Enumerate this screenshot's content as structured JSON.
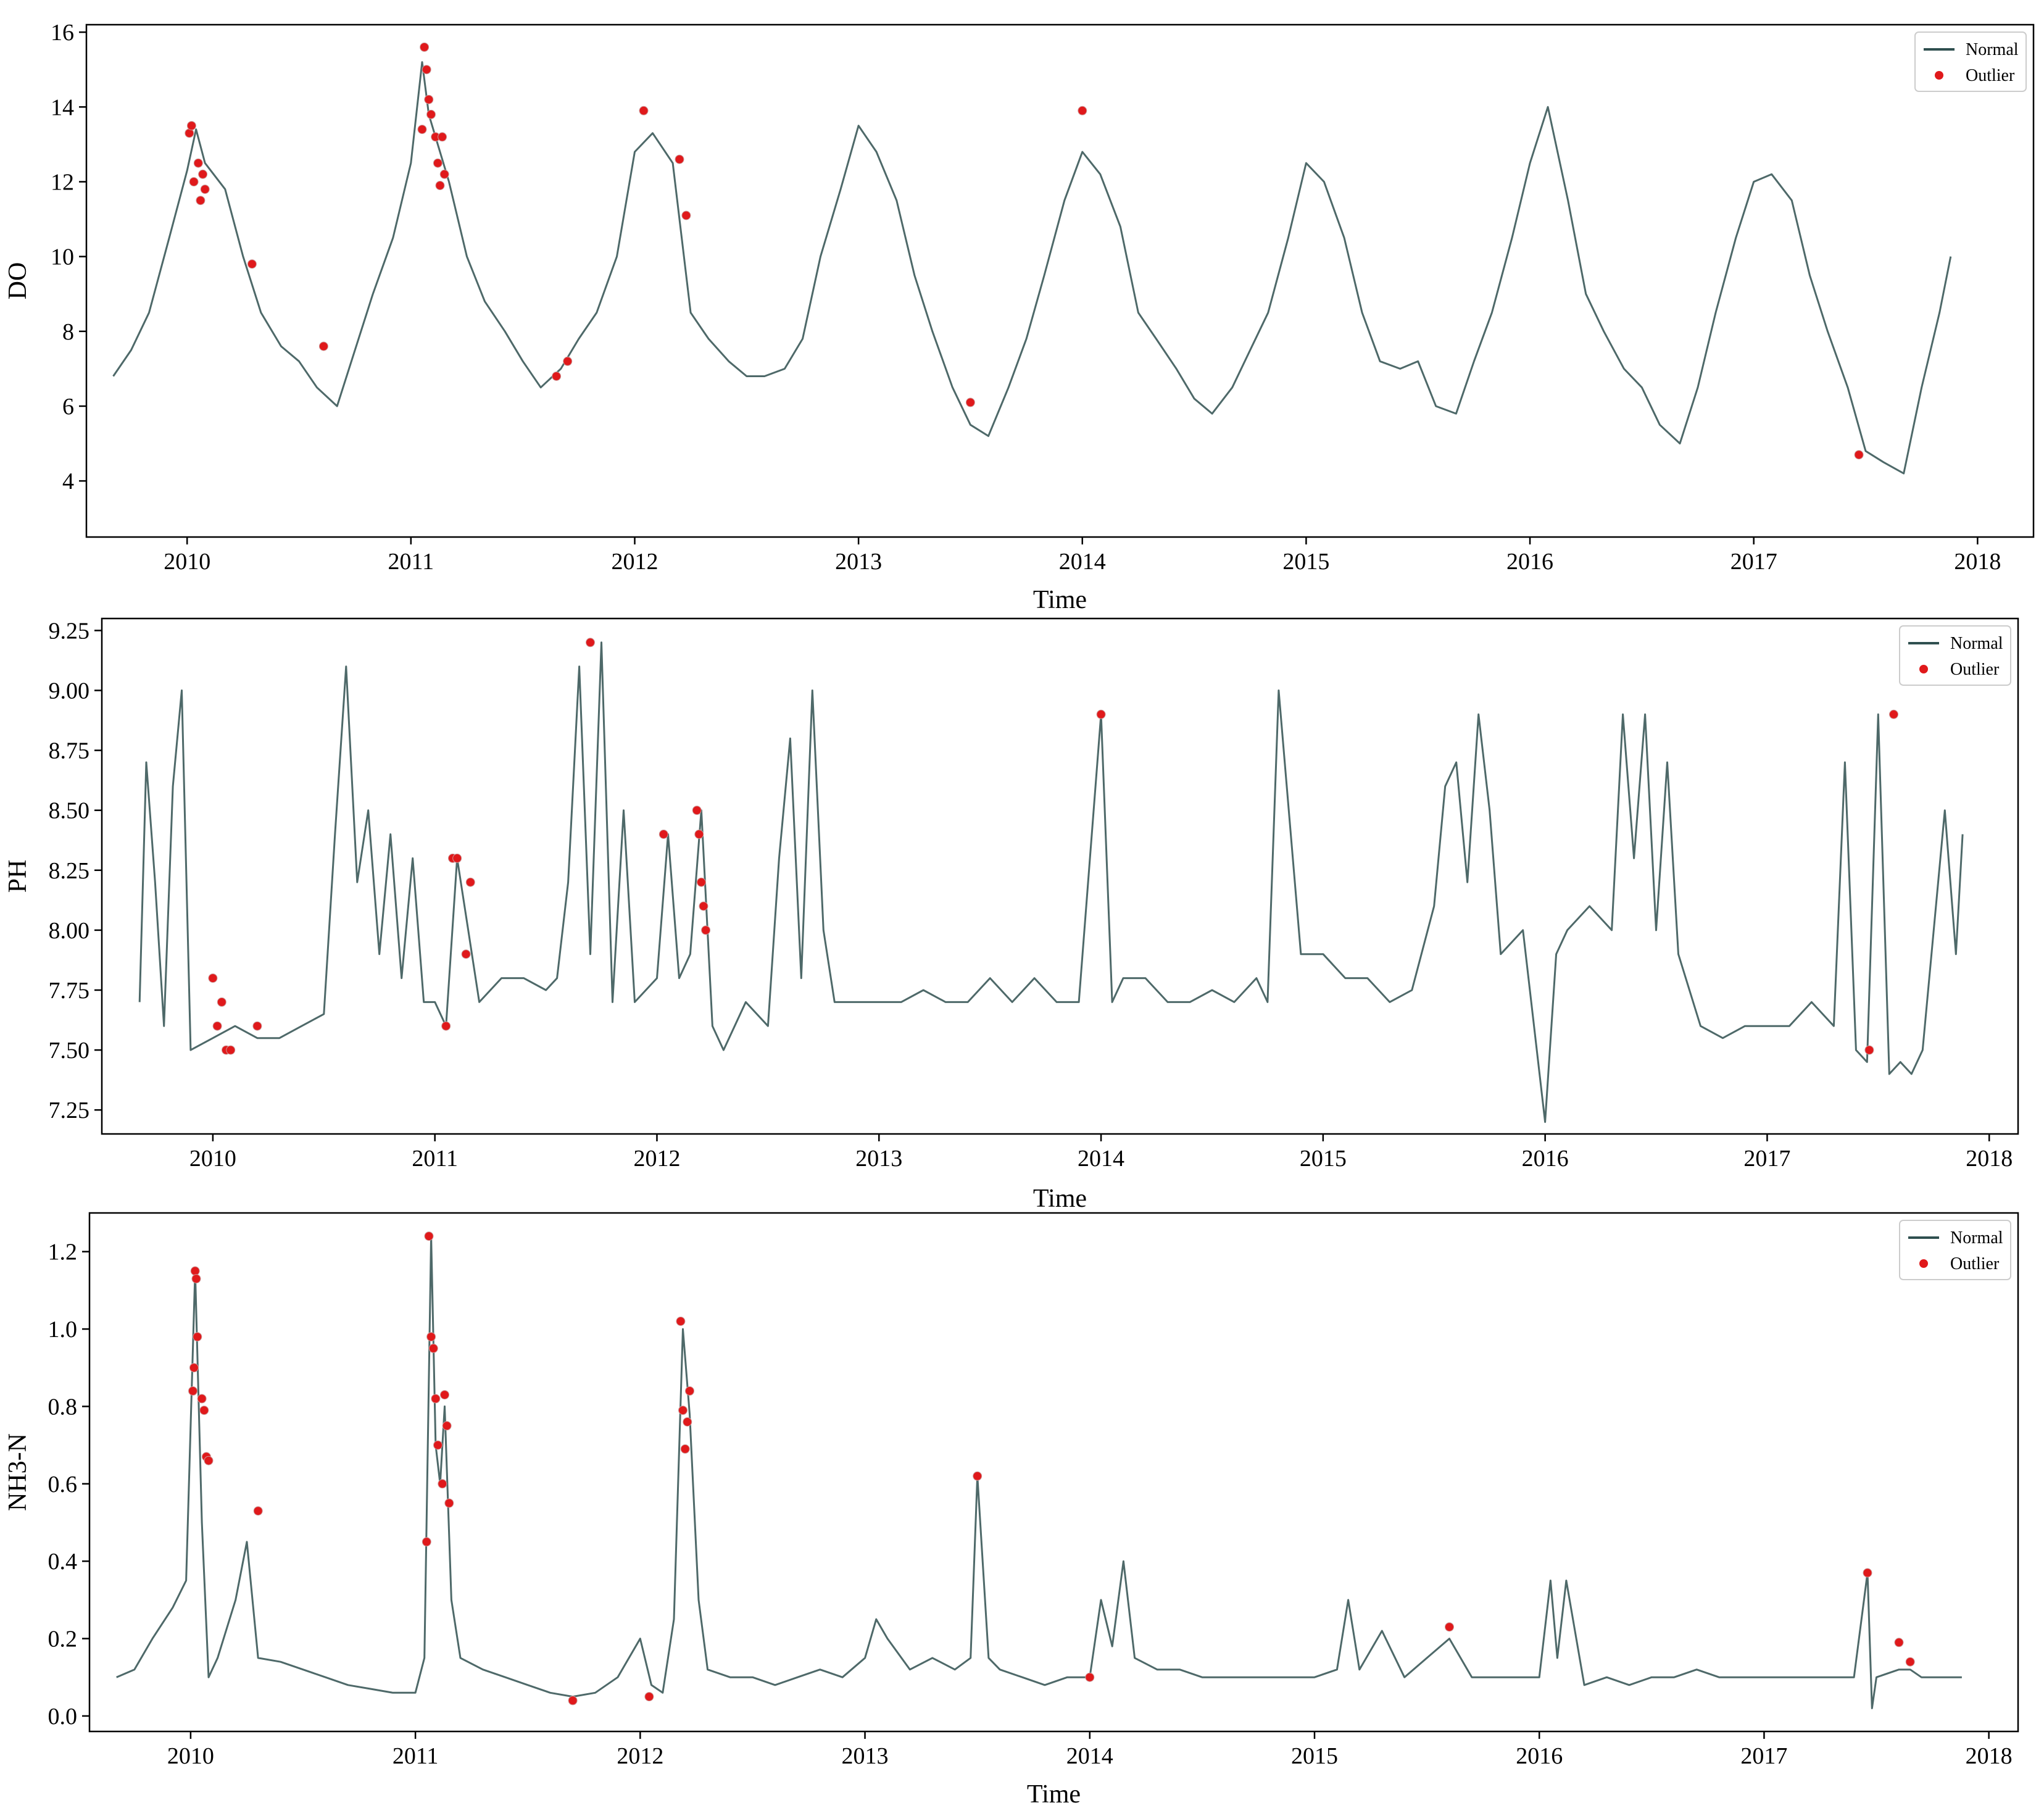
{
  "colors": {
    "normal": "#2f4f4f",
    "outlier": "#e0191b"
  },
  "chart_data": [
    {
      "type": "line",
      "xlabel": "Time",
      "ylabel": "DO",
      "xlim": [
        2009.55,
        2018.25
      ],
      "ylim": [
        2.5,
        16.2
      ],
      "x_ticks": [
        2010,
        2011,
        2012,
        2013,
        2014,
        2015,
        2016,
        2017,
        2018
      ],
      "y_ticks": [
        "4",
        "6",
        "8",
        "10",
        "12",
        "14",
        "16"
      ],
      "y_tick_values": [
        4,
        6,
        8,
        10,
        12,
        14,
        16
      ],
      "legend": {
        "position": "top-right",
        "entries": [
          "Normal",
          "Outlier"
        ]
      },
      "series": [
        {
          "name": "Normal",
          "x": [
            2009.67,
            2009.75,
            2009.83,
            2009.92,
            2010.0,
            2010.04,
            2010.08,
            2010.17,
            2010.25,
            2010.33,
            2010.42,
            2010.5,
            2010.58,
            2010.67,
            2010.75,
            2010.83,
            2010.92,
            2011.0,
            2011.05,
            2011.08,
            2011.17,
            2011.25,
            2011.33,
            2011.42,
            2011.5,
            2011.58,
            2011.67,
            2011.75,
            2011.83,
            2011.92,
            2012.0,
            2012.08,
            2012.17,
            2012.25,
            2012.33,
            2012.42,
            2012.5,
            2012.58,
            2012.67,
            2012.75,
            2012.83,
            2012.92,
            2013.0,
            2013.08,
            2013.17,
            2013.25,
            2013.33,
            2013.42,
            2013.5,
            2013.58,
            2013.67,
            2013.75,
            2013.83,
            2013.92,
            2014.0,
            2014.08,
            2014.17,
            2014.25,
            2014.33,
            2014.42,
            2014.5,
            2014.58,
            2014.67,
            2014.75,
            2014.83,
            2014.92,
            2015.0,
            2015.08,
            2015.17,
            2015.25,
            2015.33,
            2015.42,
            2015.5,
            2015.58,
            2015.67,
            2015.75,
            2015.83,
            2015.92,
            2016.0,
            2016.08,
            2016.17,
            2016.25,
            2016.33,
            2016.42,
            2016.5,
            2016.58,
            2016.67,
            2016.75,
            2016.83,
            2016.92,
            2017.0,
            2017.08,
            2017.17,
            2017.25,
            2017.33,
            2017.42,
            2017.5,
            2017.58,
            2017.67,
            2017.75,
            2017.83,
            2017.88
          ],
          "values": [
            6.8,
            7.5,
            8.5,
            10.5,
            12.3,
            13.4,
            12.5,
            11.8,
            10.0,
            8.5,
            7.6,
            7.2,
            6.5,
            6.0,
            7.5,
            9.0,
            10.5,
            12.5,
            15.2,
            13.8,
            12.0,
            10.0,
            8.8,
            8.0,
            7.2,
            6.5,
            7.0,
            7.8,
            8.5,
            10.0,
            12.8,
            13.3,
            12.5,
            8.5,
            7.8,
            7.2,
            6.8,
            6.8,
            7.0,
            7.8,
            10.0,
            11.8,
            13.5,
            12.8,
            11.5,
            9.5,
            8.0,
            6.5,
            5.5,
            5.2,
            6.5,
            7.8,
            9.5,
            11.5,
            12.8,
            12.2,
            10.8,
            8.5,
            7.8,
            7.0,
            6.2,
            5.8,
            6.5,
            7.5,
            8.5,
            10.5,
            12.5,
            12.0,
            10.5,
            8.5,
            7.2,
            7.0,
            7.2,
            6.0,
            5.8,
            7.2,
            8.5,
            10.5,
            12.5,
            14.0,
            11.5,
            9.0,
            8.0,
            7.0,
            6.5,
            5.5,
            5.0,
            6.5,
            8.5,
            10.5,
            12.0,
            12.2,
            11.5,
            9.5,
            8.0,
            6.5,
            4.8,
            4.5,
            4.2,
            6.5,
            8.5,
            10.0
          ]
        },
        {
          "name": "Outlier",
          "x": [
            2010.01,
            2010.02,
            2010.03,
            2010.05,
            2010.06,
            2010.07,
            2010.08,
            2010.29,
            2010.61,
            2011.05,
            2011.06,
            2011.07,
            2011.08,
            2011.09,
            2011.11,
            2011.12,
            2011.13,
            2011.14,
            2011.15,
            2011.65,
            2011.7,
            2012.04,
            2012.2,
            2012.23,
            2013.5,
            2014.0,
            2017.47
          ],
          "values": [
            13.3,
            13.5,
            12.0,
            12.5,
            11.5,
            12.2,
            11.8,
            9.8,
            7.6,
            13.4,
            15.6,
            15.0,
            14.2,
            13.8,
            13.2,
            12.5,
            11.9,
            13.2,
            12.2,
            6.8,
            7.2,
            13.9,
            12.6,
            11.1,
            6.1,
            13.9,
            4.7
          ]
        }
      ]
    },
    {
      "type": "line",
      "xlabel": "Time",
      "ylabel": "PH",
      "xlim": [
        2009.5,
        2018.13
      ],
      "ylim": [
        7.15,
        9.3
      ],
      "x_ticks": [
        2010,
        2011,
        2012,
        2013,
        2014,
        2015,
        2016,
        2017,
        2018
      ],
      "y_ticks": [
        "7.25",
        "7.50",
        "7.75",
        "8.00",
        "8.25",
        "8.50",
        "8.75",
        "9.00",
        "9.25"
      ],
      "y_tick_values": [
        7.25,
        7.5,
        7.75,
        8.0,
        8.25,
        8.5,
        8.75,
        9.0,
        9.25
      ],
      "legend": {
        "position": "top-right",
        "entries": [
          "Normal",
          "Outlier"
        ]
      },
      "series": [
        {
          "name": "Normal",
          "x": [
            2009.67,
            2009.7,
            2009.74,
            2009.78,
            2009.82,
            2009.86,
            2009.9,
            2010.0,
            2010.1,
            2010.2,
            2010.3,
            2010.4,
            2010.5,
            2010.55,
            2010.6,
            2010.65,
            2010.7,
            2010.75,
            2010.8,
            2010.85,
            2010.9,
            2010.95,
            2011.0,
            2011.05,
            2011.1,
            2011.15,
            2011.2,
            2011.3,
            2011.4,
            2011.5,
            2011.55,
            2011.6,
            2011.65,
            2011.7,
            2011.75,
            2011.8,
            2011.85,
            2011.9,
            2012.0,
            2012.05,
            2012.1,
            2012.15,
            2012.2,
            2012.25,
            2012.3,
            2012.4,
            2012.5,
            2012.55,
            2012.6,
            2012.65,
            2012.7,
            2012.75,
            2012.8,
            2012.9,
            2013.0,
            2013.1,
            2013.2,
            2013.3,
            2013.4,
            2013.5,
            2013.6,
            2013.7,
            2013.8,
            2013.9,
            2014.0,
            2014.05,
            2014.1,
            2014.2,
            2014.3,
            2014.4,
            2014.5,
            2014.6,
            2014.7,
            2014.75,
            2014.8,
            2014.9,
            2015.0,
            2015.1,
            2015.2,
            2015.3,
            2015.4,
            2015.5,
            2015.55,
            2015.6,
            2015.65,
            2015.7,
            2015.75,
            2015.8,
            2015.9,
            2016.0,
            2016.05,
            2016.1,
            2016.2,
            2016.3,
            2016.35,
            2016.4,
            2016.45,
            2016.5,
            2016.55,
            2016.6,
            2016.7,
            2016.8,
            2016.9,
            2017.0,
            2017.1,
            2017.2,
            2017.3,
            2017.35,
            2017.4,
            2017.45,
            2017.5,
            2017.55,
            2017.6,
            2017.65,
            2017.7,
            2017.75,
            2017.8,
            2017.85,
            2017.88
          ],
          "values": [
            7.7,
            8.7,
            8.2,
            7.6,
            8.6,
            9.0,
            7.5,
            7.55,
            7.6,
            7.55,
            7.55,
            7.6,
            7.65,
            8.4,
            9.1,
            8.2,
            8.5,
            7.9,
            8.4,
            7.8,
            8.3,
            7.7,
            7.7,
            7.6,
            8.3,
            8.0,
            7.7,
            7.8,
            7.8,
            7.75,
            7.8,
            8.2,
            9.1,
            7.9,
            9.2,
            7.7,
            8.5,
            7.7,
            7.8,
            8.4,
            7.8,
            7.9,
            8.5,
            7.6,
            7.5,
            7.7,
            7.6,
            8.3,
            8.8,
            7.8,
            9.0,
            8.0,
            7.7,
            7.7,
            7.7,
            7.7,
            7.75,
            7.7,
            7.7,
            7.8,
            7.7,
            7.8,
            7.7,
            7.7,
            8.9,
            7.7,
            7.8,
            7.8,
            7.7,
            7.7,
            7.75,
            7.7,
            7.8,
            7.7,
            9.0,
            7.9,
            7.9,
            7.8,
            7.8,
            7.7,
            7.75,
            8.1,
            8.6,
            8.7,
            8.2,
            8.9,
            8.5,
            7.9,
            8.0,
            7.2,
            7.9,
            8.0,
            8.1,
            8.0,
            8.9,
            8.3,
            8.9,
            8.0,
            8.7,
            7.9,
            7.6,
            7.55,
            7.6,
            7.6,
            7.6,
            7.7,
            7.6,
            8.7,
            7.5,
            7.45,
            8.9,
            7.4,
            7.45,
            7.4,
            7.5,
            8.0,
            8.5,
            7.9,
            8.4
          ]
        },
        {
          "name": "Outlier",
          "x": [
            2010.0,
            2010.02,
            2010.04,
            2010.06,
            2010.08,
            2010.2,
            2011.05,
            2011.08,
            2011.1,
            2011.14,
            2011.16,
            2011.7,
            2012.03,
            2012.18,
            2012.19,
            2012.2,
            2012.21,
            2012.22,
            2014.0,
            2017.46,
            2017.57
          ],
          "values": [
            7.8,
            7.6,
            7.7,
            7.5,
            7.5,
            7.6,
            7.6,
            8.3,
            8.3,
            7.9,
            8.2,
            9.2,
            8.4,
            8.5,
            8.4,
            8.2,
            8.1,
            8.0,
            8.9,
            7.5,
            8.9
          ]
        }
      ]
    },
    {
      "type": "line",
      "xlabel": "Time",
      "ylabel": "NH3-N",
      "xlim": [
        2009.55,
        2018.13
      ],
      "ylim": [
        -0.04,
        1.3
      ],
      "x_ticks": [
        2010,
        2011,
        2012,
        2013,
        2014,
        2015,
        2016,
        2017,
        2018
      ],
      "y_ticks": [
        "0.0",
        "0.2",
        "0.4",
        "0.6",
        "0.8",
        "1.0",
        "1.2"
      ],
      "y_tick_values": [
        0.0,
        0.2,
        0.4,
        0.6,
        0.8,
        1.0,
        1.2
      ],
      "legend": {
        "position": "top-right",
        "entries": [
          "Normal",
          "Outlier"
        ]
      },
      "series": [
        {
          "name": "Normal",
          "x": [
            2009.67,
            2009.75,
            2009.83,
            2009.92,
            2009.98,
            2010.02,
            2010.05,
            2010.08,
            2010.12,
            2010.2,
            2010.25,
            2010.3,
            2010.4,
            2010.5,
            2010.6,
            2010.7,
            2010.8,
            2010.9,
            2011.0,
            2011.04,
            2011.07,
            2011.09,
            2011.11,
            2011.13,
            2011.16,
            2011.2,
            2011.3,
            2011.4,
            2011.5,
            2011.6,
            2011.7,
            2011.8,
            2011.9,
            2012.0,
            2012.05,
            2012.1,
            2012.15,
            2012.19,
            2012.22,
            2012.26,
            2012.3,
            2012.4,
            2012.5,
            2012.6,
            2012.7,
            2012.8,
            2012.9,
            2013.0,
            2013.05,
            2013.1,
            2013.2,
            2013.3,
            2013.4,
            2013.47,
            2013.5,
            2013.55,
            2013.6,
            2013.7,
            2013.8,
            2013.9,
            2014.0,
            2014.05,
            2014.1,
            2014.15,
            2014.2,
            2014.3,
            2014.4,
            2014.5,
            2014.6,
            2014.7,
            2014.8,
            2014.9,
            2015.0,
            2015.1,
            2015.15,
            2015.2,
            2015.3,
            2015.4,
            2015.5,
            2015.6,
            2015.7,
            2015.8,
            2015.9,
            2016.0,
            2016.05,
            2016.08,
            2016.12,
            2016.2,
            2016.3,
            2016.4,
            2016.5,
            2016.6,
            2016.7,
            2016.8,
            2016.9,
            2017.0,
            2017.1,
            2017.2,
            2017.3,
            2017.4,
            2017.46,
            2017.48,
            2017.5,
            2017.6,
            2017.65,
            2017.7,
            2017.8,
            2017.88
          ],
          "values": [
            0.1,
            0.12,
            0.2,
            0.28,
            0.35,
            1.15,
            0.5,
            0.1,
            0.15,
            0.3,
            0.45,
            0.15,
            0.14,
            0.12,
            0.1,
            0.08,
            0.07,
            0.06,
            0.06,
            0.15,
            1.24,
            0.7,
            0.6,
            0.8,
            0.3,
            0.15,
            0.12,
            0.1,
            0.08,
            0.06,
            0.05,
            0.06,
            0.1,
            0.2,
            0.08,
            0.06,
            0.25,
            1.0,
            0.78,
            0.3,
            0.12,
            0.1,
            0.1,
            0.08,
            0.1,
            0.12,
            0.1,
            0.15,
            0.25,
            0.2,
            0.12,
            0.15,
            0.12,
            0.15,
            0.62,
            0.15,
            0.12,
            0.1,
            0.08,
            0.1,
            0.1,
            0.3,
            0.18,
            0.4,
            0.15,
            0.12,
            0.12,
            0.1,
            0.1,
            0.1,
            0.1,
            0.1,
            0.1,
            0.12,
            0.3,
            0.12,
            0.22,
            0.1,
            0.15,
            0.2,
            0.1,
            0.1,
            0.1,
            0.1,
            0.35,
            0.15,
            0.35,
            0.08,
            0.1,
            0.08,
            0.1,
            0.1,
            0.12,
            0.1,
            0.1,
            0.1,
            0.1,
            0.1,
            0.1,
            0.1,
            0.37,
            0.02,
            0.1,
            0.12,
            0.12,
            0.1,
            0.1,
            0.1
          ]
        },
        {
          "name": "Outlier",
          "x": [
            2010.01,
            2010.015,
            2010.02,
            2010.025,
            2010.03,
            2010.05,
            2010.06,
            2010.07,
            2010.08,
            2010.3,
            2011.05,
            2011.06,
            2011.07,
            2011.08,
            2011.09,
            2011.1,
            2011.12,
            2011.13,
            2011.14,
            2011.15,
            2011.7,
            2012.04,
            2012.18,
            2012.19,
            2012.2,
            2012.21,
            2012.22,
            2013.5,
            2014.0,
            2015.6,
            2017.46,
            2017.6,
            2017.65
          ],
          "values": [
            0.84,
            0.9,
            1.15,
            1.13,
            0.98,
            0.82,
            0.79,
            0.67,
            0.66,
            0.53,
            0.45,
            1.24,
            0.98,
            0.95,
            0.82,
            0.7,
            0.6,
            0.83,
            0.75,
            0.55,
            0.04,
            0.05,
            1.02,
            0.79,
            0.69,
            0.76,
            0.84,
            0.62,
            0.1,
            0.23,
            0.37,
            0.19,
            0.14
          ]
        }
      ]
    }
  ]
}
